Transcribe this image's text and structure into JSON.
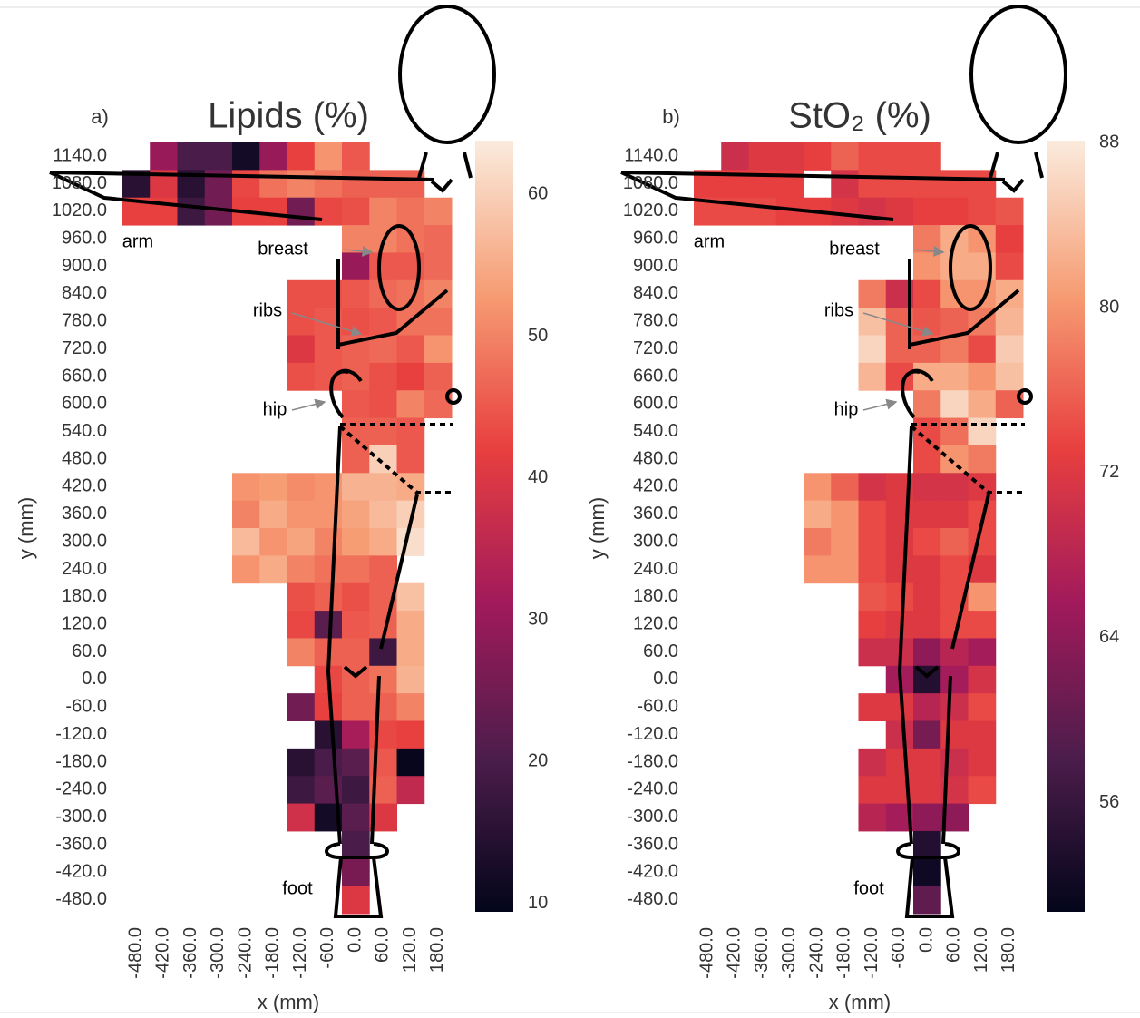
{
  "chart_data": [
    {
      "type": "heatmap",
      "panel_label": "a)",
      "title": "Lipids (%)",
      "xlabel": "x (mm)",
      "ylabel": "y (mm)",
      "annotations": [
        "arm",
        "breast",
        "ribs",
        "hip",
        "foot"
      ],
      "colormap": [
        "#03051a",
        "#4c1d4b",
        "#a11a5b",
        "#e83f3f",
        "#f69c73",
        "#faebdd"
      ],
      "x": [
        -480,
        -420,
        -360,
        -300,
        -240,
        -180,
        -120,
        -60,
        0,
        60,
        120,
        180
      ],
      "y": [
        1140,
        1080,
        1020,
        960,
        900,
        840,
        780,
        720,
        660,
        600,
        540,
        480,
        420,
        360,
        300,
        240,
        180,
        120,
        60,
        0,
        -60,
        -120,
        -180,
        -240,
        -300,
        -360,
        -420,
        -480
      ],
      "xlim": [
        -510,
        210
      ],
      "ylim": [
        -510,
        1170
      ],
      "zlim": [
        9.4,
        63.8
      ],
      "zticks": [
        10,
        20,
        30,
        40,
        50,
        60
      ],
      "xticks": [
        {
          "value": -480,
          "label": "-480.0"
        },
        {
          "value": -420,
          "label": "-420.0"
        },
        {
          "value": -360,
          "label": "-360.0"
        },
        {
          "value": -300,
          "label": "-300.0"
        },
        {
          "value": -240,
          "label": "-240.0"
        },
        {
          "value": -180,
          "label": "-180.0"
        },
        {
          "value": -120,
          "label": "-120.0"
        },
        {
          "value": -60,
          "label": "-60.0"
        },
        {
          "value": 0,
          "label": "0.0"
        },
        {
          "value": 60,
          "label": "60.0"
        },
        {
          "value": 120,
          "label": "120.0"
        },
        {
          "value": 180,
          "label": "180.0"
        }
      ],
      "yticks": [
        {
          "value": 1140,
          "label": "1140.0"
        },
        {
          "value": 1080,
          "label": "1080.0"
        },
        {
          "value": 1020,
          "label": "1020.0"
        },
        {
          "value": 960,
          "label": "960.0"
        },
        {
          "value": 900,
          "label": "900.0"
        },
        {
          "value": 840,
          "label": "840.0"
        },
        {
          "value": 780,
          "label": "780.0"
        },
        {
          "value": 720,
          "label": "720.0"
        },
        {
          "value": 660,
          "label": "660.0"
        },
        {
          "value": 600,
          "label": "600.0"
        },
        {
          "value": 540,
          "label": "540.0"
        },
        {
          "value": 480,
          "label": "480.0"
        },
        {
          "value": 420,
          "label": "420.0"
        },
        {
          "value": 360,
          "label": "360.0"
        },
        {
          "value": 300,
          "label": "300.0"
        },
        {
          "value": 240,
          "label": "240.0"
        },
        {
          "value": 180,
          "label": "180.0"
        },
        {
          "value": 120,
          "label": "120.0"
        },
        {
          "value": 60,
          "label": "60.0"
        },
        {
          "value": 0,
          "label": "0.0"
        },
        {
          "value": -60,
          "label": "-60.0"
        },
        {
          "value": -120,
          "label": "-120.0"
        },
        {
          "value": -180,
          "label": "-180.0"
        },
        {
          "value": -240,
          "label": "-240.0"
        },
        {
          "value": -300,
          "label": "-300.0"
        },
        {
          "value": -360,
          "label": "-360.0"
        },
        {
          "value": -420,
          "label": "-420.0"
        },
        {
          "value": -480,
          "label": "-480.0"
        }
      ],
      "z": [
        [
          null,
          30,
          20,
          20,
          12,
          30,
          42,
          52,
          45,
          null,
          null,
          null
        ],
        [
          15,
          40,
          15,
          25,
          43,
          48,
          50,
          48,
          46,
          46,
          46,
          null
        ],
        [
          42,
          42,
          18,
          25,
          42,
          42,
          25,
          43,
          44,
          50,
          48,
          50
        ],
        [
          null,
          null,
          null,
          null,
          null,
          null,
          null,
          null,
          50,
          50,
          48,
          47
        ],
        [
          null,
          null,
          null,
          null,
          null,
          null,
          null,
          null,
          30,
          45,
          45,
          47
        ],
        [
          null,
          null,
          null,
          null,
          null,
          null,
          44,
          44,
          45,
          47,
          48,
          50
        ],
        [
          null,
          null,
          null,
          null,
          null,
          null,
          44,
          45,
          44,
          45,
          48,
          48
        ],
        [
          null,
          null,
          null,
          null,
          null,
          null,
          40,
          45,
          46,
          47,
          45,
          52
        ],
        [
          null,
          null,
          null,
          null,
          null,
          null,
          44,
          45,
          46,
          44,
          42,
          46
        ],
        [
          null,
          null,
          null,
          null,
          null,
          null,
          null,
          null,
          45,
          44,
          50,
          47
        ],
        [
          null,
          null,
          null,
          null,
          null,
          null,
          null,
          null,
          46,
          46,
          45,
          null
        ],
        [
          null,
          null,
          null,
          null,
          null,
          null,
          null,
          null,
          46,
          60,
          45,
          null
        ],
        [
          null,
          null,
          null,
          null,
          52,
          53,
          51,
          52,
          56,
          56,
          55,
          null
        ],
        [
          null,
          null,
          null,
          null,
          50,
          55,
          52,
          52,
          54,
          57,
          60,
          null
        ],
        [
          null,
          null,
          null,
          null,
          57,
          52,
          54,
          50,
          53,
          55,
          62,
          null
        ],
        [
          null,
          null,
          null,
          null,
          52,
          55,
          50,
          48,
          48,
          46,
          null,
          null
        ],
        [
          null,
          null,
          null,
          null,
          null,
          null,
          44,
          46,
          44,
          46,
          58,
          null
        ],
        [
          null,
          null,
          null,
          null,
          null,
          null,
          43,
          22,
          45,
          46,
          55,
          null
        ],
        [
          null,
          null,
          null,
          null,
          null,
          null,
          50,
          46,
          46,
          18,
          55,
          null
        ],
        [
          null,
          null,
          null,
          null,
          null,
          null,
          null,
          43,
          46,
          48,
          56,
          null
        ],
        [
          null,
          null,
          null,
          null,
          null,
          null,
          25,
          42,
          46,
          46,
          50,
          null
        ],
        [
          null,
          null,
          null,
          null,
          null,
          null,
          null,
          15,
          32,
          43,
          42,
          null
        ],
        [
          null,
          null,
          null,
          null,
          null,
          null,
          15,
          20,
          22,
          45,
          10,
          null
        ],
        [
          null,
          null,
          null,
          null,
          null,
          null,
          18,
          22,
          18,
          46,
          36,
          null
        ],
        [
          null,
          null,
          null,
          null,
          null,
          null,
          38,
          12,
          22,
          40,
          null,
          null
        ],
        [
          null,
          null,
          null,
          null,
          null,
          null,
          null,
          null,
          20,
          null,
          null,
          null
        ],
        [
          null,
          null,
          null,
          null,
          null,
          null,
          null,
          null,
          26,
          null,
          null,
          null
        ],
        [
          null,
          null,
          null,
          null,
          null,
          null,
          null,
          null,
          40,
          null,
          null,
          null
        ]
      ]
    },
    {
      "type": "heatmap",
      "panel_label": "b)",
      "title": "StO₂ (%)",
      "xlabel": "x (mm)",
      "ylabel": "y (mm)",
      "annotations": [
        "arm",
        "breast",
        "ribs",
        "hip",
        "foot"
      ],
      "colormap": [
        "#03051a",
        "#4c1d4b",
        "#a11a5b",
        "#e83f3f",
        "#f69c73",
        "#faebdd"
      ],
      "x": [
        -480,
        -420,
        -360,
        -300,
        -240,
        -180,
        -120,
        -60,
        0,
        60,
        120,
        180
      ],
      "y": [
        1140,
        1080,
        1020,
        960,
        900,
        840,
        780,
        720,
        660,
        600,
        540,
        480,
        420,
        360,
        300,
        240,
        180,
        120,
        60,
        0,
        -60,
        -120,
        -180,
        -240,
        -300,
        -360,
        -420,
        -480
      ],
      "xlim": [
        -510,
        210
      ],
      "ylim": [
        -510,
        1170
      ],
      "zlim": [
        50.7,
        88.1
      ],
      "zticks": [
        56,
        64,
        72,
        80,
        88
      ],
      "xticks": [
        {
          "value": -480,
          "label": "-480.0"
        },
        {
          "value": -420,
          "label": "-420.0"
        },
        {
          "value": -360,
          "label": "-360.0"
        },
        {
          "value": -300,
          "label": "-300.0"
        },
        {
          "value": -240,
          "label": "-240.0"
        },
        {
          "value": -180,
          "label": "-180.0"
        },
        {
          "value": -120,
          "label": "-120.0"
        },
        {
          "value": -60,
          "label": "-60.0"
        },
        {
          "value": 0,
          "label": "0.0"
        },
        {
          "value": 60,
          "label": "60.0"
        },
        {
          "value": 120,
          "label": "120.0"
        },
        {
          "value": 180,
          "label": "180.0"
        }
      ],
      "yticks": [
        {
          "value": 1140,
          "label": "1140.0"
        },
        {
          "value": 1080,
          "label": "1080.0"
        },
        {
          "value": 1020,
          "label": "1020.0"
        },
        {
          "value": 960,
          "label": "960.0"
        },
        {
          "value": 900,
          "label": "900.0"
        },
        {
          "value": 840,
          "label": "840.0"
        },
        {
          "value": 780,
          "label": "780.0"
        },
        {
          "value": 720,
          "label": "720.0"
        },
        {
          "value": 660,
          "label": "660.0"
        },
        {
          "value": 600,
          "label": "600.0"
        },
        {
          "value": 540,
          "label": "540.0"
        },
        {
          "value": 480,
          "label": "480.0"
        },
        {
          "value": 420,
          "label": "420.0"
        },
        {
          "value": 360,
          "label": "360.0"
        },
        {
          "value": 300,
          "label": "300.0"
        },
        {
          "value": 240,
          "label": "240.0"
        },
        {
          "value": 180,
          "label": "180.0"
        },
        {
          "value": 120,
          "label": "120.0"
        },
        {
          "value": 60,
          "label": "60.0"
        },
        {
          "value": 0,
          "label": "0.0"
        },
        {
          "value": -60,
          "label": "-60.0"
        },
        {
          "value": -120,
          "label": "-120.0"
        },
        {
          "value": -180,
          "label": "-180.0"
        },
        {
          "value": -240,
          "label": "-240.0"
        },
        {
          "value": -300,
          "label": "-300.0"
        },
        {
          "value": -360,
          "label": "-360.0"
        },
        {
          "value": -420,
          "label": "-420.0"
        },
        {
          "value": -480,
          "label": "-480.0"
        }
      ],
      "z": [
        [
          null,
          70,
          72,
          72,
          73,
          76,
          74,
          74,
          74,
          null,
          null,
          null
        ],
        [
          73,
          73,
          73,
          73,
          null,
          71,
          74,
          74,
          74,
          74,
          74,
          null
        ],
        [
          74,
          74,
          74,
          73,
          73,
          72,
          71,
          72,
          73,
          73,
          74,
          75
        ],
        [
          null,
          null,
          null,
          null,
          null,
          null,
          null,
          null,
          78,
          82,
          80,
          73
        ],
        [
          null,
          null,
          null,
          null,
          null,
          null,
          null,
          null,
          80,
          82,
          82,
          74
        ],
        [
          null,
          null,
          null,
          null,
          null,
          null,
          78,
          70,
          74,
          80,
          80,
          82
        ],
        [
          null,
          null,
          null,
          null,
          null,
          null,
          84,
          76,
          75,
          76,
          78,
          83
        ],
        [
          null,
          null,
          null,
          null,
          null,
          null,
          86,
          76,
          76,
          78,
          74,
          85
        ],
        [
          null,
          null,
          null,
          null,
          null,
          null,
          83,
          74,
          82,
          82,
          80,
          84
        ],
        [
          null,
          null,
          null,
          null,
          null,
          null,
          null,
          null,
          78,
          86,
          82,
          76
        ],
        [
          null,
          null,
          null,
          null,
          null,
          null,
          null,
          null,
          74,
          77,
          86,
          null
        ],
        [
          null,
          null,
          null,
          null,
          null,
          null,
          null,
          null,
          74,
          80,
          78,
          null
        ],
        [
          null,
          null,
          null,
          null,
          80,
          76,
          71,
          72,
          71,
          71,
          72,
          null
        ],
        [
          null,
          null,
          null,
          null,
          82,
          80,
          74,
          72,
          72,
          72,
          74,
          null
        ],
        [
          null,
          null,
          null,
          null,
          78,
          80,
          74,
          72,
          74,
          76,
          74,
          null
        ],
        [
          null,
          null,
          null,
          null,
          80,
          80,
          74,
          72,
          72,
          74,
          72,
          null
        ],
        [
          null,
          null,
          null,
          null,
          null,
          null,
          75,
          74,
          72,
          74,
          80,
          null
        ],
        [
          null,
          null,
          null,
          null,
          null,
          null,
          73,
          72,
          72,
          74,
          74,
          null
        ],
        [
          null,
          null,
          null,
          null,
          null,
          null,
          70,
          70,
          64,
          68,
          66,
          null
        ],
        [
          null,
          null,
          null,
          null,
          null,
          null,
          null,
          66,
          54,
          66,
          71,
          null
        ],
        [
          null,
          null,
          null,
          null,
          null,
          null,
          72,
          72,
          68,
          70,
          74,
          null
        ],
        [
          null,
          null,
          null,
          null,
          null,
          null,
          null,
          70,
          62,
          72,
          72,
          null
        ],
        [
          null,
          null,
          null,
          null,
          null,
          null,
          70,
          72,
          72,
          70,
          72,
          null
        ],
        [
          null,
          null,
          null,
          null,
          null,
          null,
          72,
          72,
          72,
          71,
          74,
          null
        ],
        [
          null,
          null,
          null,
          null,
          null,
          null,
          68,
          66,
          64,
          64,
          null,
          null
        ],
        [
          null,
          null,
          null,
          null,
          null,
          null,
          null,
          null,
          54,
          null,
          null,
          null
        ],
        [
          null,
          null,
          null,
          null,
          null,
          null,
          null,
          null,
          52,
          null,
          null,
          null
        ],
        [
          null,
          null,
          null,
          null,
          null,
          null,
          null,
          null,
          60,
          null,
          null,
          null
        ]
      ]
    }
  ]
}
